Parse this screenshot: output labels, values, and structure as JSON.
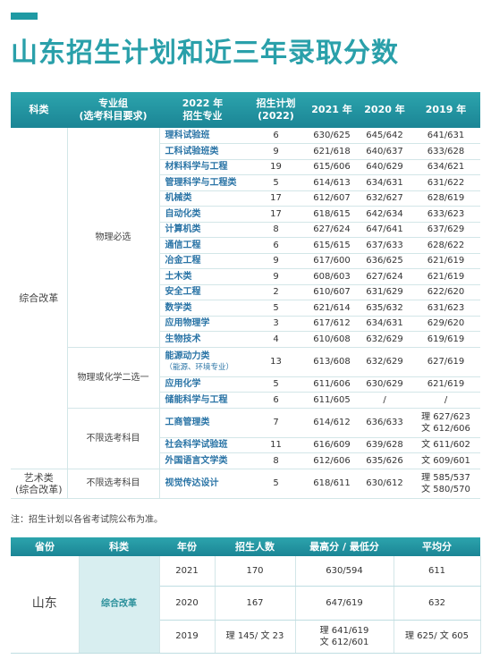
{
  "title": "山东招生计划和近三年录取分数",
  "table1": {
    "header": [
      [
        "科类"
      ],
      [
        "专业组",
        "(选考科目要求)"
      ],
      [
        "2022 年",
        "招生专业"
      ],
      [
        "招生计划",
        "(2022)"
      ],
      [
        "2021 年"
      ],
      [
        "2020 年"
      ],
      [
        "2019 年"
      ]
    ],
    "sections": [
      {
        "category": [
          "综合改革"
        ],
        "groups": [
          {
            "name": "物理必选",
            "rows": [
              [
                "理科试验班",
                6,
                "630/625",
                "645/642",
                "641/631"
              ],
              [
                "工科试验班类",
                9,
                "621/618",
                "640/637",
                "633/628"
              ],
              [
                "材料科学与工程",
                19,
                "615/606",
                "640/629",
                "634/621"
              ],
              [
                "管理科学与工程类",
                5,
                "614/613",
                "634/631",
                "631/622"
              ],
              [
                "机械类",
                17,
                "612/607",
                "632/627",
                "628/619"
              ],
              [
                "自动化类",
                17,
                "618/615",
                "642/634",
                "633/623"
              ],
              [
                "计算机类",
                8,
                "627/624",
                "647/641",
                "637/629"
              ],
              [
                "通信工程",
                6,
                "615/615",
                "637/633",
                "628/622"
              ],
              [
                "冶金工程",
                9,
                "617/600",
                "636/625",
                "621/619"
              ],
              [
                "土木类",
                9,
                "608/603",
                "627/624",
                "621/619"
              ],
              [
                "安全工程",
                2,
                "610/607",
                "631/629",
                "622/620"
              ],
              [
                "数学类",
                5,
                "621/614",
                "635/632",
                "631/623"
              ],
              [
                "应用物理学",
                3,
                "617/612",
                "634/631",
                "629/620"
              ],
              [
                "生物技术",
                4,
                "610/608",
                "632/629",
                "619/619"
              ]
            ]
          },
          {
            "name": "物理或化学二选一",
            "rows": [
              [
                [
                  "能源动力类",
                  "（能源、环境专业）"
                ],
                13,
                "613/608",
                "632/629",
                "627/619"
              ],
              [
                "应用化学",
                5,
                "611/606",
                "630/629",
                "621/619"
              ],
              [
                "储能科学与工程",
                6,
                "611/605",
                "/",
                "/"
              ]
            ]
          },
          {
            "name": "不限选考科目",
            "rows": [
              [
                "工商管理类",
                7,
                "614/612",
                "636/633",
                [
                  "理 627/623",
                  "文 612/606"
                ]
              ],
              [
                "社会科学试验班",
                11,
                "616/609",
                "639/628",
                "文 611/602"
              ],
              [
                "外国语言文学类",
                8,
                "612/606",
                "635/626",
                "文 609/601"
              ]
            ]
          }
        ]
      },
      {
        "category": [
          "艺术类",
          "(综合改革)"
        ],
        "groups": [
          {
            "name": "不限选考科目",
            "rows": [
              [
                "视觉传达设计",
                5,
                "618/611",
                "630/612",
                [
                  "理 585/537",
                  "文 580/570"
                ]
              ]
            ]
          }
        ]
      }
    ]
  },
  "note": "注：招生计划以各省考试院公布为准。",
  "table2": {
    "header": [
      "省份",
      "科类",
      "年份",
      "招生人数",
      "最高分 / 最低分",
      "平均分"
    ],
    "province": "山东",
    "category": "综合改革",
    "rows": [
      [
        "2021",
        "170",
        "630/594",
        "611"
      ],
      [
        "2020",
        "167",
        "647/619",
        "632"
      ],
      [
        "2019",
        "理 145/ 文 23",
        [
          "理 641/619",
          "文 612/601"
        ],
        "理 625/ 文 605"
      ]
    ]
  }
}
